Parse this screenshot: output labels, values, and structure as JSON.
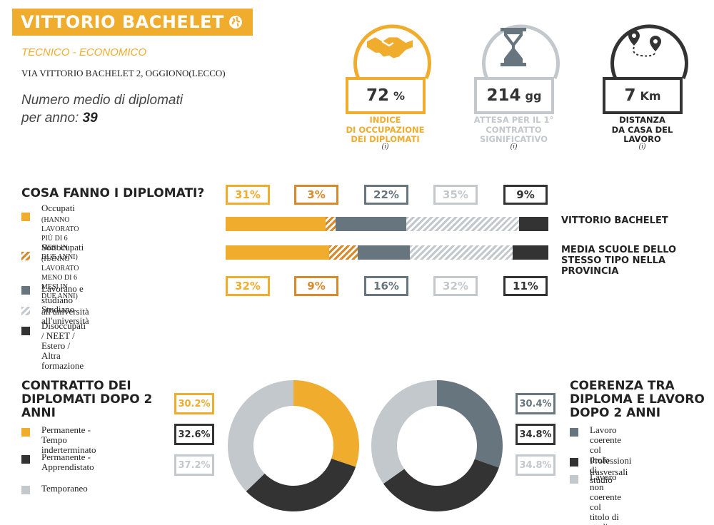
{
  "school": {
    "name": "VITTORIO BACHELET",
    "type": "TECNICO - ECONOMICO",
    "address": "VIA VITTORIO BACHELET 2, OGGIONO(LECCO)",
    "avg_label_1": "Numero medio di diplomati",
    "avg_label_2": "per anno:",
    "avg_value": "39"
  },
  "kpis": [
    {
      "value": "72",
      "unit": "%",
      "label_lines": [
        "INDICE",
        "DI OCCUPAZIONE",
        "DEI DIPLOMATI"
      ],
      "info": "(i)",
      "color": "#f0ac2d",
      "icon": "handshake-icon"
    },
    {
      "value": "214",
      "unit": "gg",
      "label_lines": [
        "ATTESA PER IL 1°",
        "CONTRATTO",
        "SIGNIFICATIVO"
      ],
      "info": "(i)",
      "color": "#c3c8cc",
      "label_color": "#c3c8cc",
      "icon": "hourglass-icon"
    },
    {
      "value": "7",
      "unit": "Km",
      "label_lines": [
        "DISTANZA",
        "DA CASA DEL",
        "LAVORO"
      ],
      "info": "(i)",
      "color": "#333333",
      "icon": "map-pins-icon"
    }
  ],
  "activities": {
    "title": "COSA FANNO I DIPLOMATI?",
    "legend": [
      {
        "label": "Occupati",
        "sub": [
          "(HANNO LAVORATO PIÙ DI 6",
          "MESI IN DUE ANNI)"
        ]
      },
      {
        "label": "Sottocupati",
        "sub": [
          "(HANNO LAVORATO MENO DI 6",
          "MESI IN DUE ANNI)"
        ]
      },
      {
        "label": "Lavorano e studiano all'università",
        "sub": []
      },
      {
        "label": "Studiano all'università",
        "sub": []
      },
      {
        "label": "Disoccupati / NEET / Estero / Altra",
        "sub": []
      },
      {
        "label_2": "formazione"
      }
    ],
    "school_label": "VITTORIO BACHELET",
    "province_label_lines": [
      "MEDIA SCUOLE DELLO",
      "STESSO TIPO NELLA",
      "PROVINCIA"
    ],
    "school_values": [
      31,
      3,
      22,
      35,
      9
    ],
    "province_values": [
      32,
      9,
      16,
      32,
      11
    ],
    "school_pct_labels": [
      "31%",
      "3%",
      "22%",
      "35%",
      "9%"
    ],
    "province_pct_labels": [
      "32%",
      "9%",
      "16%",
      "32%",
      "11%"
    ]
  },
  "contract": {
    "title_lines": [
      "CONTRATTO DEI",
      "DIPLOMATI DOPO 2",
      "ANNI"
    ],
    "legend": [
      {
        "label": [
          "Permanente - Tempo",
          "inderterminato"
        ]
      },
      {
        "label": [
          "Permanente -",
          "Apprendistato"
        ]
      },
      {
        "label": [
          "Temporaneo"
        ]
      }
    ],
    "values": [
      30.2,
      32.6,
      37.2
    ],
    "pct_labels": [
      "30.2%",
      "32.6%",
      "37.2%"
    ]
  },
  "coherence": {
    "title_lines": [
      "COERENZA TRA",
      "DIPLOMA E LAVORO",
      "DOPO 2 ANNI"
    ],
    "legend": [
      {
        "label": [
          "Lavoro coerente col titolo",
          "di studio"
        ]
      },
      {
        "label": [
          "Professioni trasversali"
        ]
      },
      {
        "label": [
          "Lavoro non coerente col",
          "titolo di studio"
        ]
      }
    ],
    "values": [
      30.4,
      34.8,
      34.8
    ],
    "pct_labels": [
      "30.4%",
      "34.8%",
      "34.8%"
    ]
  },
  "colors": {
    "orange": "#f0ac2d",
    "dark_orange": "#d9892a",
    "slate": "#67757f",
    "light_gray": "#c3c8cc",
    "dark": "#333333"
  }
}
